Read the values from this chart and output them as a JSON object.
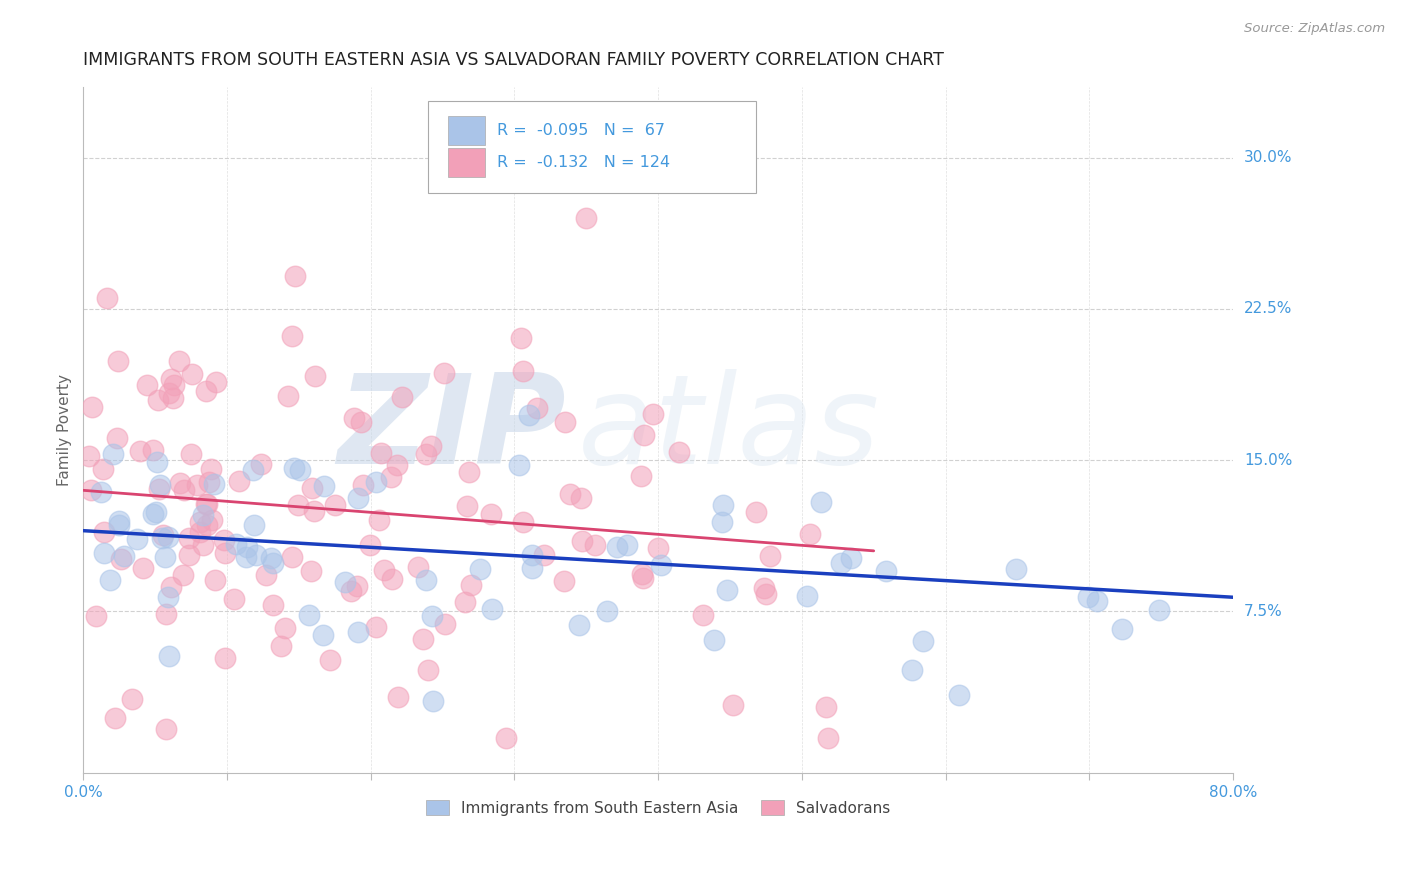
{
  "title": "IMMIGRANTS FROM SOUTH EASTERN ASIA VS SALVADORAN FAMILY POVERTY CORRELATION CHART",
  "source": "Source: ZipAtlas.com",
  "ylabel": "Family Poverty",
  "ylabel_right_ticks": [
    "7.5%",
    "15.0%",
    "22.5%",
    "30.0%"
  ],
  "ylabel_right_vals": [
    0.075,
    0.15,
    0.225,
    0.3
  ],
  "xlim": [
    0.0,
    0.8
  ],
  "ylim": [
    -0.005,
    0.335
  ],
  "blue_color": "#aac4e8",
  "pink_color": "#f2a0b8",
  "blue_line_color": "#1a3fbf",
  "pink_line_color": "#d94470",
  "watermark_zip": "ZIP",
  "watermark_atlas": "atlas",
  "legend_label_blue": "Immigrants from South Eastern Asia",
  "legend_label_pink": "Salvadorans",
  "blue_trend_x0": 0.0,
  "blue_trend_x1": 0.8,
  "blue_trend_y0": 0.115,
  "blue_trend_y1": 0.082,
  "pink_trend_x0": 0.0,
  "pink_trend_x1": 0.55,
  "pink_trend_y0": 0.135,
  "pink_trend_y1": 0.105,
  "grid_color": "#cccccc",
  "bg_color": "#ffffff",
  "title_color": "#222222",
  "right_tick_color": "#4499dd",
  "legend_box_color": "#4499dd"
}
